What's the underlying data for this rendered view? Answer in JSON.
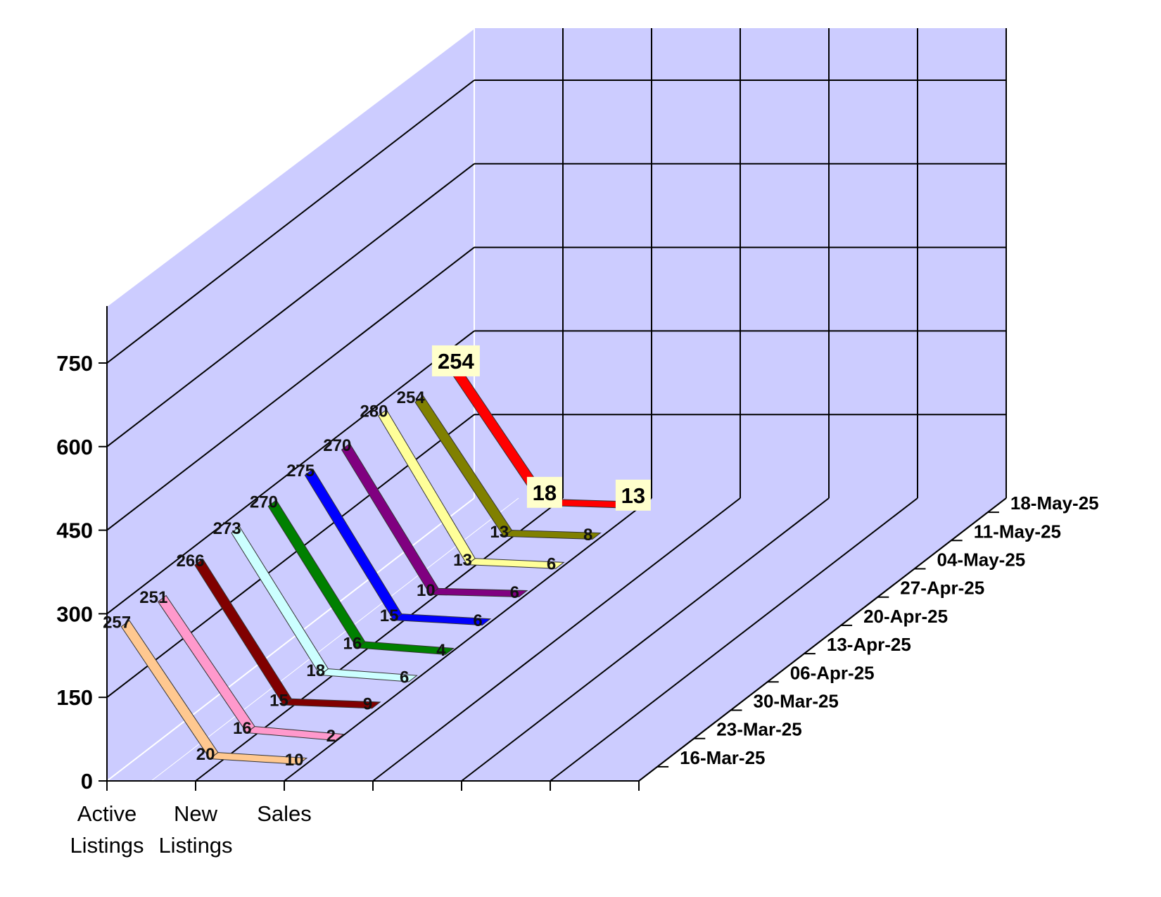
{
  "chart_data": {
    "type": "line",
    "categories": [
      "Active\nListings",
      "New\nListings",
      "Sales"
    ],
    "x": [
      "16-Mar-25",
      "23-Mar-25",
      "30-Mar-25",
      "06-Apr-25",
      "13-Apr-25",
      "20-Apr-25",
      "27-Apr-25",
      "04-May-25",
      "11-May-25",
      "18-May-25"
    ],
    "series": [
      {
        "name": "16-Mar-25",
        "color": "#FFC890",
        "values": [
          257,
          20,
          10
        ]
      },
      {
        "name": "23-Mar-25",
        "color": "#FF99CC",
        "values": [
          251,
          16,
          2
        ]
      },
      {
        "name": "30-Mar-25",
        "color": "#800000",
        "values": [
          266,
          15,
          9
        ]
      },
      {
        "name": "06-Apr-25",
        "color": "#CCFFFF",
        "values": [
          273,
          18,
          6
        ]
      },
      {
        "name": "13-Apr-25",
        "color": "#008000",
        "values": [
          270,
          16,
          4
        ]
      },
      {
        "name": "20-Apr-25",
        "color": "#0000FF",
        "values": [
          275,
          15,
          6
        ]
      },
      {
        "name": "27-Apr-25",
        "color": "#800080",
        "values": [
          270,
          10,
          6
        ]
      },
      {
        "name": "04-May-25",
        "color": "#FFFF99",
        "values": [
          280,
          13,
          6
        ]
      },
      {
        "name": "11-May-25",
        "color": "#808000",
        "values": [
          254,
          13,
          8
        ]
      },
      {
        "name": "18-May-25",
        "color": "#FF0000",
        "values": [
          254,
          18,
          13
        ]
      }
    ],
    "y_ticks": [
      "0",
      "150",
      "300",
      "450",
      "600",
      "750"
    ],
    "ylim": [
      0,
      750
    ],
    "grid": true,
    "colors": {
      "wall": "#CCCCFF",
      "highlight_box": "#FFFFCC"
    }
  }
}
